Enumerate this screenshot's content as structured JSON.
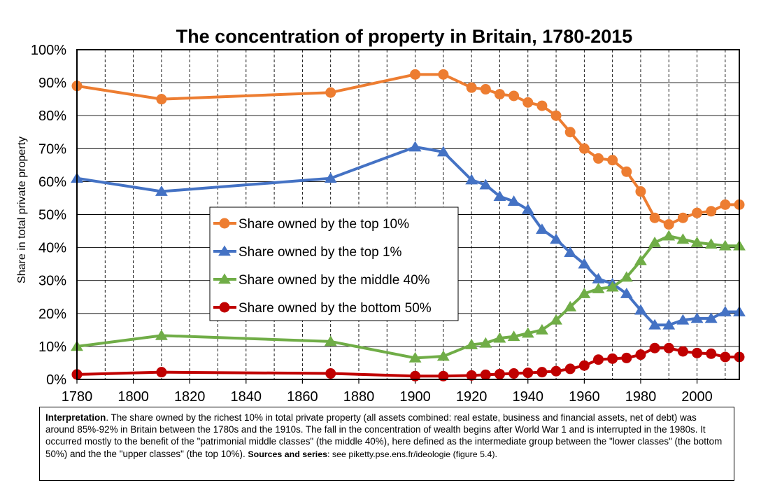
{
  "chart_data": {
    "type": "line",
    "title": "The concentration of property in Britain, 1780-2015",
    "xlabel": "",
    "ylabel": "Share in total private property",
    "xlim": [
      1780,
      2015
    ],
    "ylim": [
      0,
      100
    ],
    "x_ticks": [
      "1780",
      "1800",
      "1820",
      "1840",
      "1860",
      "1880",
      "1900",
      "1920",
      "1940",
      "1960",
      "1980",
      "2000"
    ],
    "y_ticks": [
      "0%",
      "10%",
      "20%",
      "30%",
      "40%",
      "50%",
      "60%",
      "70%",
      "80%",
      "90%",
      "100%"
    ],
    "grid": true,
    "legend_position": "center-left",
    "x": [
      1780,
      1810,
      1870,
      1900,
      1910,
      1920,
      1925,
      1930,
      1935,
      1940,
      1945,
      1950,
      1955,
      1960,
      1965,
      1970,
      1975,
      1980,
      1985,
      1990,
      1995,
      2000,
      2005,
      2010,
      2015
    ],
    "series": [
      {
        "name": "Share owned by the top 10%",
        "color": "#ED7D31",
        "marker": "circle",
        "values": [
          89,
          85,
          87,
          92.5,
          92.5,
          88.5,
          88,
          86.5,
          86,
          84,
          83,
          80,
          75,
          70,
          67,
          66.5,
          63,
          57,
          49,
          47,
          49,
          50.5,
          51,
          53,
          53
        ]
      },
      {
        "name": "Share owned by the top 1%",
        "color": "#4472C4",
        "marker": "triangle",
        "values": [
          61,
          57,
          61,
          70.5,
          69,
          60.5,
          59,
          55.5,
          54,
          51.5,
          45.5,
          42.5,
          38.5,
          35,
          30.5,
          29,
          26,
          21,
          16.5,
          16.5,
          18,
          18.5,
          18.5,
          20.5,
          20.5
        ]
      },
      {
        "name": "Share owned by the middle 40%",
        "color": "#70AD47",
        "marker": "triangle",
        "values": [
          10,
          13.3,
          11.5,
          6.5,
          7,
          10.5,
          11,
          12.5,
          13,
          14,
          15,
          18,
          22,
          26,
          27.5,
          28,
          31,
          36,
          41.5,
          43.5,
          42.5,
          41.5,
          41,
          40.5,
          40.5
        ]
      },
      {
        "name": "Share owned by the bottom 50%",
        "color": "#C00000",
        "marker": "circle",
        "values": [
          1.5,
          2.2,
          1.8,
          1,
          1,
          1.2,
          1.4,
          1.6,
          1.8,
          2,
          2.2,
          2.5,
          3.2,
          4.2,
          6,
          6.3,
          6.5,
          7.5,
          9.5,
          9.5,
          8.5,
          8,
          7.8,
          6.8,
          6.8
        ]
      }
    ]
  },
  "note": {
    "interp_label": "Interpretation",
    "interp_text": ". The share owned by the richest 10% in total private property (all assets combined: real estate, business and financial assets, net of debt) was around 85%-92% in Britain between the 1780s and the 1910s. The fall in the concentration of wealth begins after World War 1 and is interrupted in the 1980s. It occurred mostly to the benefit of the \"patrimonial middle classes\" (the middle 40%), here defined as the intermediate group between the \"lower classes\" (the bottom 50%) and the the \"upper classes\" (the top 10%). ",
    "sources_label": "Sources and series",
    "sources_text": ": see piketty.pse.ens.fr/ideologie (figure 5.4)."
  }
}
